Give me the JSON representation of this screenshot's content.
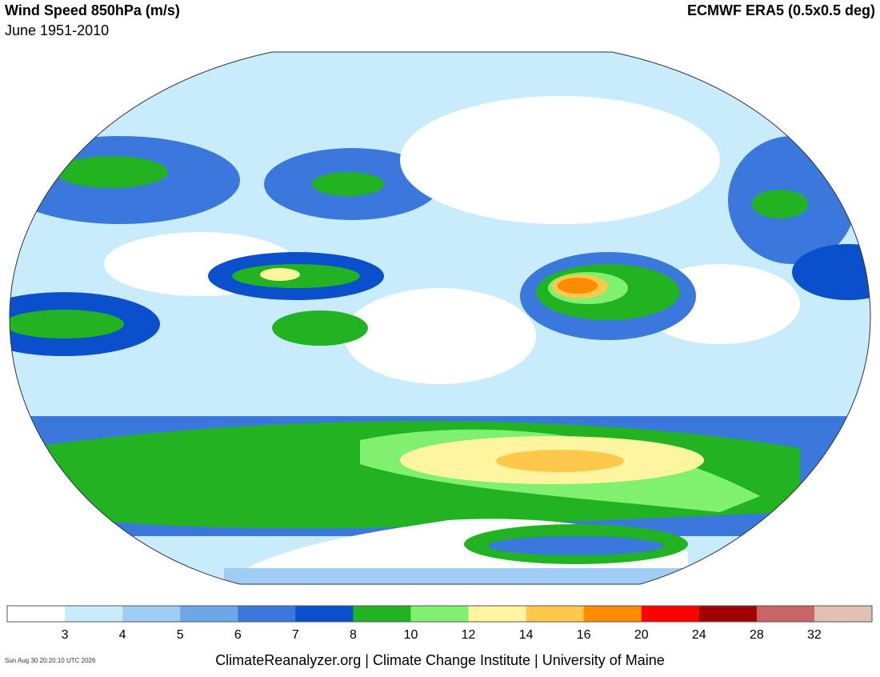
{
  "header": {
    "title": "Wind Speed 850hPa (m/s)",
    "subtitle": "June 1951-2010",
    "source": "ECMWF ERA5 (0.5x0.5 deg)"
  },
  "legend": {
    "colors": [
      "#ffffff",
      "#c8ecfc",
      "#9fcdf4",
      "#6ea6ea",
      "#3a78dc",
      "#0a4fcc",
      "#22b322",
      "#80f070",
      "#fff5a0",
      "#ffc84a",
      "#ff8c00",
      "#ff0000",
      "#a30000",
      "#c86464",
      "#e0bfb4"
    ],
    "ticks": [
      3,
      4,
      5,
      6,
      7,
      8,
      10,
      12,
      14,
      16,
      20,
      24,
      28,
      32
    ]
  },
  "footer": {
    "credit": "ClimateReanalyzer.org | Climate Change Institute | University of Maine",
    "timestamp": "Sun Aug 30 20:20:10 UTC 2026"
  }
}
